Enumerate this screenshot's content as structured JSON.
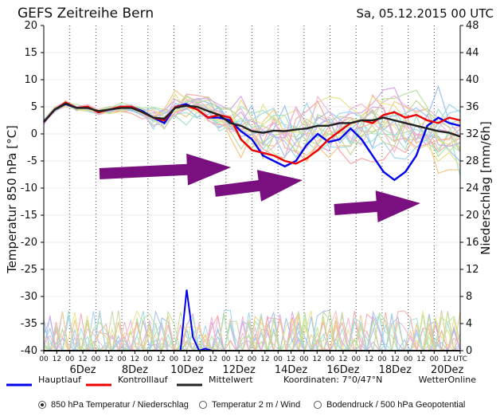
{
  "header": {
    "title": "GEFS Zeitreihe Bern",
    "run": "Sa, 05.12.2015  00 UTC"
  },
  "chart_data": {
    "type": "line",
    "title": "GEFS Zeitreihe Bern",
    "run_time": "Sa, 05.12.2015  00 UTC",
    "ylabel": "Temperatur 850 hPa [°C]",
    "y2label": "Niederschlag [mm/6h]",
    "ylim": [
      -40,
      20
    ],
    "y2lim": [
      0,
      48
    ],
    "yticks": [
      20,
      15,
      10,
      5,
      0,
      -5,
      -10,
      -15,
      -20,
      -25,
      -30,
      -35,
      -40
    ],
    "y2ticks": [
      48,
      44,
      40,
      36,
      32,
      28,
      24,
      20,
      16,
      12,
      8,
      4,
      0
    ],
    "xticks": [
      "00",
      "12",
      "00",
      "12",
      "00",
      "12",
      "00",
      "12",
      "00",
      "12",
      "00",
      "12",
      "00",
      "12",
      "00",
      "12",
      "00",
      "12",
      "00",
      "12",
      "00",
      "12",
      "00",
      "12",
      "00",
      "12",
      "00",
      "12",
      "00",
      "12",
      "00",
      "12",
      "UTC"
    ],
    "day_labels": [
      "6Dez",
      "8Dez",
      "10Dez",
      "12Dez",
      "14Dez",
      "16Dez",
      "18Dez",
      "20Dez"
    ],
    "grid": true,
    "series": [
      {
        "name": "Hauptlauf",
        "color": "#0000ee",
        "values": [
          2.2,
          4.5,
          5.5,
          4.8,
          5.0,
          4.0,
          4.5,
          4.8,
          5.0,
          4.2,
          3.0,
          2.0,
          5.0,
          5.5,
          4.5,
          3.0,
          3.0,
          2.5,
          0.5,
          -1.0,
          -4.0,
          -5.0,
          -6.0,
          -5.0,
          -2.0,
          0.0,
          -1.5,
          -1.0,
          1.0,
          -1.0,
          -4.0,
          -7.0,
          -8.5,
          -7.0,
          -4.0,
          1.5,
          3.0,
          2.0,
          1.5
        ]
      },
      {
        "name": "Kontrolllauf",
        "color": "#ee0000",
        "values": [
          2.2,
          4.5,
          5.8,
          4.8,
          5.0,
          4.0,
          4.5,
          5.0,
          5.0,
          4.0,
          3.0,
          2.5,
          5.0,
          5.2,
          4.5,
          3.0,
          3.5,
          3.0,
          -1.0,
          -3.0,
          -3.5,
          -4.0,
          -5.0,
          -5.5,
          -4.5,
          -3.0,
          -1.0,
          0.5,
          2.0,
          2.5,
          2.0,
          3.5,
          4.0,
          3.0,
          3.5,
          2.5,
          2.0,
          3.0,
          2.5
        ]
      },
      {
        "name": "Mittelwert",
        "color": "#222222",
        "values": [
          2.2,
          4.5,
          5.6,
          4.8,
          4.8,
          4.2,
          4.5,
          4.8,
          4.8,
          4.0,
          3.0,
          2.8,
          4.8,
          5.2,
          5.0,
          4.2,
          3.5,
          2.0,
          1.5,
          0.5,
          0.2,
          0.6,
          0.5,
          0.8,
          1.0,
          1.5,
          1.5,
          2.0,
          2.0,
          2.5,
          2.5,
          3.0,
          2.5,
          2.0,
          1.5,
          1.0,
          0.5,
          0.2,
          -0.5
        ]
      }
    ],
    "precip_series": [
      {
        "name": "Hauptlauf",
        "color": "#0000ee",
        "values": [
          0,
          0,
          0,
          0,
          0,
          0,
          0,
          0,
          0,
          0,
          0,
          0,
          0,
          0,
          0,
          0,
          0,
          0,
          0,
          0,
          0,
          0,
          0,
          9,
          2,
          0,
          0.3,
          0,
          0,
          0,
          0,
          0,
          0,
          0,
          0,
          0,
          0,
          0,
          0,
          0,
          0,
          0,
          0,
          0,
          0,
          0,
          0,
          0,
          0,
          0,
          0,
          0,
          0,
          0,
          0,
          0,
          0,
          0,
          0,
          0,
          0,
          0,
          0,
          0,
          0,
          0,
          0,
          0
        ]
      },
      {
        "name": "Kontrolllauf",
        "color": "#ee0000",
        "values": [
          0,
          0,
          0,
          0,
          0,
          0,
          0,
          0,
          0,
          0,
          0,
          0,
          0,
          0,
          0,
          0,
          0,
          0,
          0,
          0,
          0,
          0,
          0,
          0,
          0,
          0,
          0,
          0,
          0,
          0,
          0,
          0,
          0,
          0,
          0,
          0,
          0,
          0,
          0,
          0,
          0,
          0,
          0,
          0,
          0,
          0,
          0,
          0,
          0,
          0,
          0,
          0,
          0,
          0,
          0,
          0,
          0,
          0,
          0,
          0,
          0,
          0,
          0,
          0,
          0,
          0,
          0,
          0
        ]
      },
      {
        "name": "Mittelwert",
        "color": "#222222",
        "values": [
          0,
          0,
          0,
          0,
          0,
          0,
          0,
          0,
          0,
          0,
          0,
          0,
          0,
          0,
          0,
          0,
          0,
          0,
          0,
          0,
          0,
          0,
          0,
          0,
          0,
          0,
          0,
          0,
          0,
          0,
          0,
          0,
          0,
          0,
          0,
          0,
          0,
          0,
          0,
          0,
          0,
          0,
          0,
          0,
          0,
          0,
          0,
          0,
          0,
          0,
          0,
          0,
          0,
          0,
          0,
          0,
          0,
          0,
          0,
          0,
          0,
          0,
          0,
          0,
          0,
          0,
          0,
          0
        ]
      }
    ],
    "annotations": [
      "purple arrow pointing right",
      "purple arrow pointing right",
      "purple arrow pointing right"
    ],
    "legend": {
      "items": [
        "Hauptlauf",
        "Kontrolllauf",
        "Mittelwert"
      ],
      "coordinates": "Koordinaten: 7°0/47°N",
      "source": "WetterOnline"
    }
  },
  "options": [
    {
      "label": "850 hPa Temperatur / Niederschlag",
      "selected": true
    },
    {
      "label": "Temperatur 2 m / Wind",
      "selected": false
    },
    {
      "label": "Bodendruck / 500 hPa Geopotential",
      "selected": false
    }
  ]
}
